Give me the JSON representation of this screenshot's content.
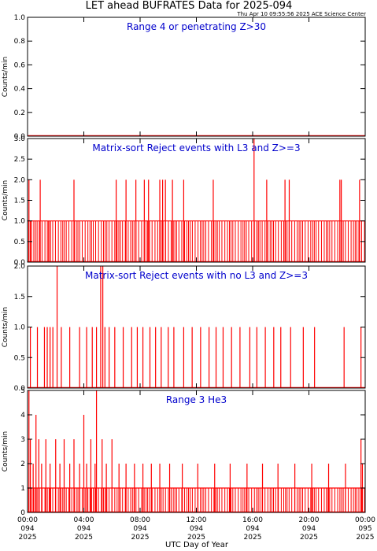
{
  "header": {
    "title": "LET ahead BUFRATES Data for 2025-094",
    "timestamp": "Thu Apr 10 09:55:56 2025 ACE Science Center"
  },
  "chart_data": [
    {
      "type": "bar",
      "title": "Range 4 or   penetrating Z>30",
      "ylabel": "Counts/min",
      "ylim": [
        0,
        1.0
      ],
      "y_ticks": [
        "0.0",
        "0.2",
        "0.4",
        "0.6",
        "0.8",
        "1.0"
      ],
      "y_tick_values": [
        0,
        0.2,
        0.4,
        0.6,
        0.8,
        1.0
      ],
      "series": [
        {
          "color": "#ff0000",
          "baseline": 0,
          "x": [],
          "values": []
        }
      ]
    },
    {
      "type": "bar",
      "title": "Matrix-sort Reject events with L3 and Z>=3",
      "ylabel": "Counts/min",
      "ylim": [
        0,
        3.0
      ],
      "y_ticks": [
        "0.0",
        "0.5",
        "1.0",
        "1.5",
        "2.0",
        "2.5",
        "3.0"
      ],
      "y_tick_values": [
        0,
        0.5,
        1.0,
        1.5,
        2.0,
        2.5,
        3.0
      ],
      "series": [
        {
          "color": "#ff0000",
          "baseline": 0,
          "x": [
            0.1,
            0.2,
            0.9,
            1.5,
            3.3,
            6.3,
            7.0,
            7.7,
            8.3,
            8.6,
            9.4,
            9.6,
            9.8,
            10.3,
            11.1,
            13.2,
            16.1,
            16.4,
            17.0,
            18.3,
            18.6,
            22.2,
            22.3,
            23.6
          ],
          "values": [
            2,
            1,
            2,
            1,
            2,
            2,
            2,
            2,
            2,
            2,
            2,
            2,
            2,
            2,
            2,
            2,
            3,
            1,
            2,
            2,
            2,
            2,
            2,
            2
          ]
        }
      ],
      "dense_baseline": {
        "value": 1,
        "description": "near-continuous 1 count/min readings"
      }
    },
    {
      "type": "bar",
      "title": "Matrix-sort Reject events with no L3 and Z>=3",
      "ylabel": "Counts/min",
      "ylim": [
        0,
        2.0
      ],
      "y_ticks": [
        "0.0",
        "0.5",
        "1.0",
        "1.5",
        "2.0"
      ],
      "y_tick_values": [
        0,
        0.5,
        1.0,
        1.5,
        2.0
      ],
      "series": [
        {
          "color": "#ff0000",
          "baseline": 0,
          "x": [
            0.2,
            0.7,
            1.2,
            1.4,
            1.6,
            1.8,
            2.1,
            2.4,
            3.0,
            3.7,
            4.2,
            4.6,
            4.9,
            5.2,
            5.35,
            5.5,
            5.8,
            6.2,
            6.8,
            7.4,
            7.8,
            8.2,
            8.7,
            9.1,
            9.5,
            10.0,
            10.4,
            11.1,
            11.7,
            12.3,
            12.9,
            13.4,
            13.9,
            14.5,
            15.1,
            15.8,
            16.3,
            16.9,
            17.5,
            18.0,
            18.7,
            19.6,
            20.4,
            22.5,
            23.7
          ],
          "values": [
            1,
            1,
            1,
            1,
            1,
            1,
            2,
            1,
            1,
            1,
            1,
            1,
            1,
            2,
            2,
            1,
            1,
            1,
            1,
            1,
            1,
            1,
            1,
            1,
            1,
            1,
            1,
            1,
            1,
            1,
            1,
            1,
            1,
            1,
            1,
            1,
            1,
            1,
            1,
            1,
            1,
            1,
            1,
            1,
            1
          ]
        }
      ]
    },
    {
      "type": "bar",
      "title": "Range 3 He3",
      "ylabel": "Counts/min",
      "ylim": [
        0,
        5
      ],
      "y_ticks": [
        "0",
        "1",
        "2",
        "3",
        "4",
        "5"
      ],
      "y_tick_values": [
        0,
        1,
        2,
        3,
        4,
        5
      ],
      "series": [
        {
          "color": "#ff0000",
          "baseline": 0,
          "x": [
            0.1,
            0.2,
            0.4,
            0.6,
            0.8,
            1.0,
            1.3,
            1.6,
            2.0,
            2.3,
            2.6,
            3.0,
            3.3,
            3.7,
            4.0,
            4.2,
            4.5,
            4.8,
            4.9,
            5.3,
            5.6,
            6.0,
            6.5,
            7.0,
            7.6,
            8.2,
            8.8,
            9.4,
            10.1,
            11.0,
            12.1,
            13.3,
            14.4,
            15.6,
            16.7,
            17.8,
            19.0,
            20.2,
            21.4,
            22.6,
            23.7,
            23.8
          ],
          "values": [
            5,
            3,
            2,
            4,
            3,
            2,
            3,
            2,
            3,
            2,
            3,
            2,
            3,
            2,
            4,
            2,
            3,
            2,
            5,
            3,
            2,
            3,
            2,
            2,
            2,
            2,
            2,
            2,
            2,
            2,
            2,
            2,
            2,
            2,
            2,
            2,
            2,
            2,
            2,
            2,
            3,
            2
          ]
        }
      ],
      "dense_baseline": {
        "value": 1,
        "description": "near-continuous 1 count/min readings"
      }
    }
  ],
  "x_axis": {
    "label": "UTC Day of Year",
    "range_hours": [
      0,
      24
    ],
    "ticks": [
      {
        "hours": 0,
        "time": "00:00",
        "doy": "094",
        "year": "2025"
      },
      {
        "hours": 4,
        "time": "04:00",
        "doy": "094",
        "year": "2025"
      },
      {
        "hours": 8,
        "time": "08:00",
        "doy": "094",
        "year": "2025"
      },
      {
        "hours": 12,
        "time": "12:00",
        "doy": "094",
        "year": "2025"
      },
      {
        "hours": 16,
        "time": "16:00",
        "doy": "094",
        "year": "2025"
      },
      {
        "hours": 20,
        "time": "20:00",
        "doy": "094",
        "year": "2025"
      },
      {
        "hours": 24,
        "time": "00:00",
        "doy": "095",
        "year": "2025"
      }
    ]
  },
  "colors": {
    "data": "#ff0000",
    "panel_title": "#0000cc",
    "axes": "#000000"
  }
}
